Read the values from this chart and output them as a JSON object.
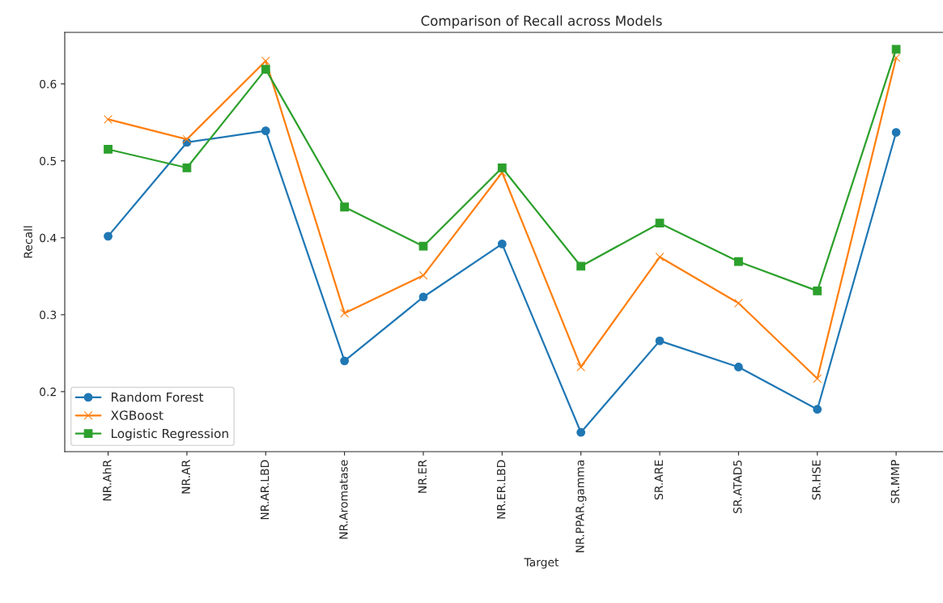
{
  "chart_data": {
    "type": "line",
    "title": "Comparison of Recall across Models",
    "xlabel": "Target",
    "ylabel": "Recall",
    "categories": [
      "NR.AhR",
      "NR.AR",
      "NR.AR.LBD",
      "NR.Aromatase",
      "NR.ER",
      "NR.ER.LBD",
      "NR.PPAR.gamma",
      "SR.ARE",
      "SR.ATAD5",
      "SR.HSE",
      "SR.MMP"
    ],
    "series": [
      {
        "name": "Random Forest",
        "color": "#1f77b4",
        "marker": "circle",
        "values": [
          0.402,
          0.524,
          0.539,
          0.24,
          0.323,
          0.392,
          0.147,
          0.266,
          0.232,
          0.177,
          0.537
        ]
      },
      {
        "name": "XGBoost",
        "color": "#ff7f0e",
        "marker": "cross",
        "values": [
          0.554,
          0.528,
          0.63,
          0.302,
          0.351,
          0.485,
          0.232,
          0.375,
          0.315,
          0.217,
          0.634
        ]
      },
      {
        "name": "Logistic Regression",
        "color": "#2ca02c",
        "marker": "square",
        "values": [
          0.515,
          0.491,
          0.619,
          0.44,
          0.389,
          0.491,
          0.363,
          0.419,
          0.369,
          0.331,
          0.645
        ]
      }
    ],
    "ylim": [
      0.122,
      0.667
    ],
    "yticks": [
      0.2,
      0.3,
      0.4,
      0.5,
      0.6
    ],
    "grid": false,
    "legend": "bottom left",
    "line_style": "solid"
  }
}
